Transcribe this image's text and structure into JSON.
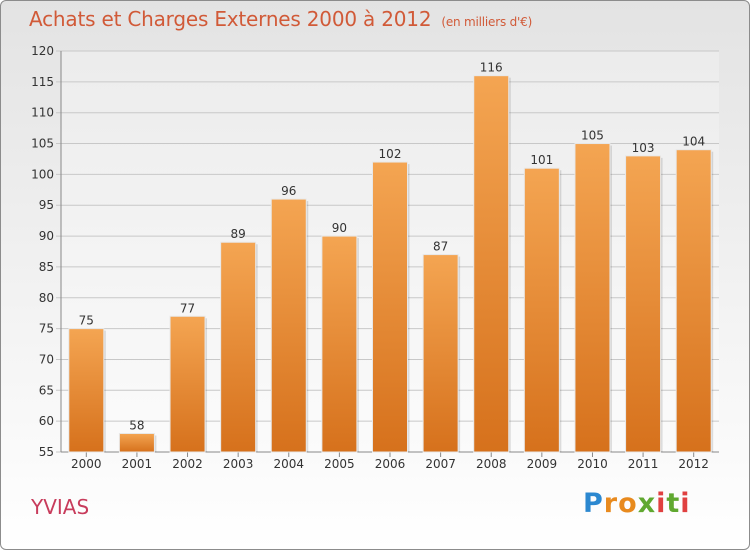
{
  "title": "Achats et Charges Externes 2000 à 2012",
  "subtitle": "(en milliers d'€)",
  "town": "YVIAS",
  "logo": "Proxiti",
  "colors": {
    "bar_top": "#f4a552",
    "bar_bottom": "#d6711c",
    "title": "#d15a38",
    "town": "#c83c5c"
  },
  "chart_data": {
    "type": "bar",
    "title": "Achats et Charges Externes 2000 à 2012",
    "subtitle": "(en milliers d'€)",
    "categories": [
      "2000",
      "2001",
      "2002",
      "2003",
      "2004",
      "2005",
      "2006",
      "2007",
      "2008",
      "2009",
      "2010",
      "2011",
      "2012"
    ],
    "values": [
      75,
      58,
      77,
      89,
      96,
      90,
      102,
      87,
      116,
      101,
      105,
      103,
      104
    ],
    "ylim": [
      55,
      120
    ],
    "yticks": [
      55,
      60,
      65,
      70,
      75,
      80,
      85,
      90,
      95,
      100,
      105,
      110,
      115,
      120
    ],
    "grid": true,
    "data_labels": true
  }
}
